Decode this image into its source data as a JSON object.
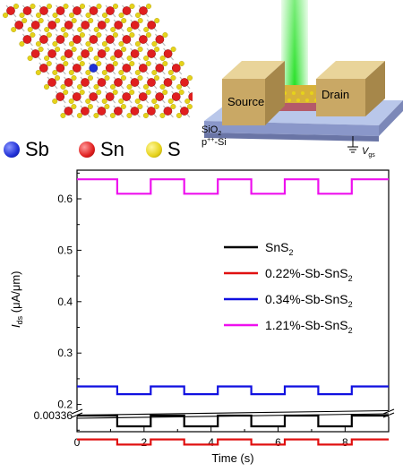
{
  "figure": {
    "atom_legend": [
      {
        "label": "Sb",
        "color": "#1f2fd6"
      },
      {
        "label": "Sn",
        "color": "#e01f1f"
      },
      {
        "label": "S",
        "color": "#e6d21a"
      }
    ],
    "device": {
      "source_label": "Source",
      "drain_label": "Drain",
      "substrate_label_1": "SiO",
      "substrate_label_1_sub": "2",
      "substrate_label_2": "p",
      "substrate_label_2_sup": "++",
      "substrate_label_2_rest": "-Si",
      "gate_label": "V",
      "gate_label_sub": "gs",
      "light_color": "#22e022"
    }
  },
  "chart_data": {
    "type": "line",
    "xlabel": "Time (s)",
    "ylabel": "I",
    "ylabel_sub": "ds",
    "ylabel_unit": " (μA/μm)",
    "xlim": [
      0,
      9.3
    ],
    "x_ticks": [
      0,
      2,
      4,
      6,
      8
    ],
    "y_ticks": [
      {
        "value": 0.6,
        "label": "0.6"
      },
      {
        "value": 0.5,
        "label": "0.5"
      },
      {
        "value": 0.4,
        "label": "0.4"
      },
      {
        "value": 0.3,
        "label": "0.3"
      },
      {
        "value": 0.2,
        "label": "0.2"
      },
      {
        "value": 0.00336,
        "label": "0.00336"
      }
    ],
    "axis_break": true,
    "light_on_intervals": [
      [
        1.2,
        2.2
      ],
      [
        3.2,
        4.2
      ],
      [
        5.2,
        6.2
      ],
      [
        7.2,
        8.2
      ]
    ],
    "legend_position": "center-right",
    "series": [
      {
        "name": "SnS",
        "name_sub": "2",
        "name_rest": "",
        "color": "#000000",
        "high": 0.00336,
        "low": 0.00326
      },
      {
        "name": "0.22%-Sb-SnS",
        "name_sub": "2",
        "name_rest": "",
        "color": "#e01010",
        "high": 0.132,
        "low": 0.122
      },
      {
        "name": "0.34%-Sb-SnS",
        "name_sub": "2",
        "name_rest": "",
        "color": "#1010e0",
        "high": 0.235,
        "low": 0.22
      },
      {
        "name": "1.21%-Sb-SnS",
        "name_sub": "2",
        "name_rest": "",
        "color": "#ee10ee",
        "high": 0.638,
        "low": 0.61
      }
    ]
  }
}
